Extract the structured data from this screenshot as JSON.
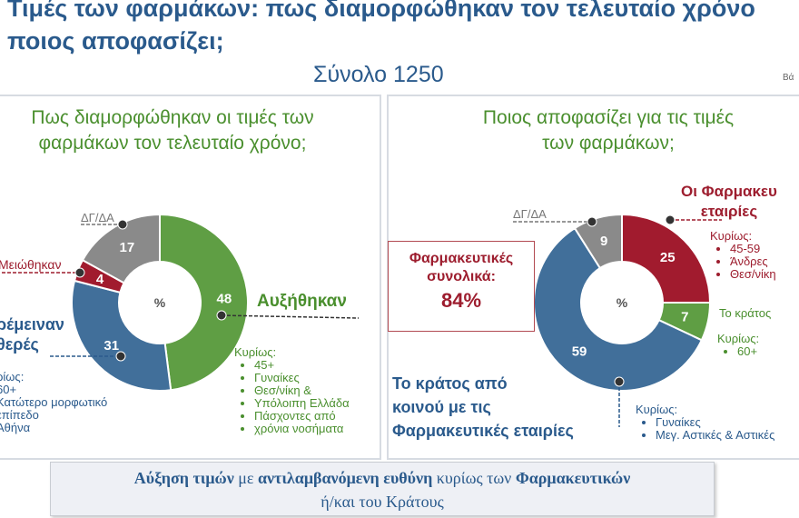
{
  "title_line1": "Τιμές των φαρμάκων: πως διαμορφώθηκαν τον τελευταίο χρόνο",
  "title_line2": "ποιος αποφασίζει;",
  "total": "Σύνολο 1250",
  "corner_text": "Βά",
  "left": {
    "title_line1": "Πως διαμορφώθηκαν οι τιμές των",
    "title_line2": "φαρμάκων τον τελευταίο χρόνο;",
    "center_label": "%",
    "labels": {
      "dk": "ΔΓ/ΔΑ",
      "decreased": "Μειώθηκαν",
      "stable_1": "ρέμειναν",
      "stable_2": "θερές",
      "increased": "Αυξήθηκαν"
    },
    "stable_sub_title": "ρίως:",
    "stable_sub": [
      "60+",
      "Κατώτερο μορφωτικό",
      "επίπεδο",
      "Αθήνα"
    ],
    "increased_sub_title": "Κυρίως:",
    "increased_sub": [
      "45+",
      "Γυναίκες",
      "Θεσ/νίκη &",
      "Υπόλοιπη Ελλάδα",
      "Πάσχοντες από",
      "χρόνια νοσήματα"
    ]
  },
  "right": {
    "title_line1": "Ποιος αποφασίζει για τις τιμές",
    "title_line2": "των φαρμάκων;",
    "center_label": "%",
    "labels": {
      "dk": "ΔΓ/ΔΑ",
      "pharma_1": "Οι Φαρμακευ",
      "pharma_2": "εταιρίες",
      "state": "Το κράτος",
      "both_1": "Το κράτος από",
      "both_2": "κοινού με τις",
      "both_3": "Φαρμακευτικές εταιρίες"
    },
    "pharma_sub_title": "Κυρίως:",
    "pharma_sub": [
      "45-59",
      "Άνδρες",
      "Θεσ/νίκη"
    ],
    "state_sub_title": "Κυρίως:",
    "state_sub": [
      "60+"
    ],
    "both_sub_title": "Κυρίως:",
    "both_sub": [
      "Γυναίκες",
      "Μεγ. Αστικές & Αστικές"
    ],
    "pharma_total_1": "Φαρμακευτικές",
    "pharma_total_2": "συνολικά:",
    "pharma_total_value": "84%"
  },
  "bottom": {
    "b1": "Αύξηση τιμών",
    "t1": " με ",
    "b2": "αντιλαμβανόμενη ευθύνη",
    "t2": " κυρίως των ",
    "b3": "Φαρμακευτικών",
    "line2": "ή/και του Κράτους"
  },
  "colors": {
    "green": "#5f9e44",
    "blue": "#416f9a",
    "red": "#a11b2e",
    "grey": "#8a8a8a",
    "title_blue": "#2a5a8c"
  },
  "chart_data": [
    {
      "type": "pie",
      "title": "Πως διαμορφώθηκαν οι τιμές των φαρμάκων τον τελευταίο χρόνο;",
      "categories": [
        "Αυξήθηκαν",
        "Παρέμειναν σταθερές",
        "Μειώθηκαν",
        "ΔΓ/ΔΑ"
      ],
      "values": [
        48,
        31,
        4,
        17
      ],
      "colors": [
        "#5f9e44",
        "#416f9a",
        "#a11b2e",
        "#8a8a8a"
      ]
    },
    {
      "type": "pie",
      "title": "Ποιος αποφασίζει για τις τιμές των φαρμάκων;",
      "categories": [
        "Οι Φαρμακευτικές εταιρίες",
        "Το κράτος",
        "Το κράτος από κοινού με τις Φαρμακευτικές εταιρίες",
        "ΔΓ/ΔΑ"
      ],
      "values": [
        25,
        7,
        59,
        9
      ],
      "colors": [
        "#a11b2e",
        "#5f9e44",
        "#416f9a",
        "#8a8a8a"
      ]
    }
  ]
}
